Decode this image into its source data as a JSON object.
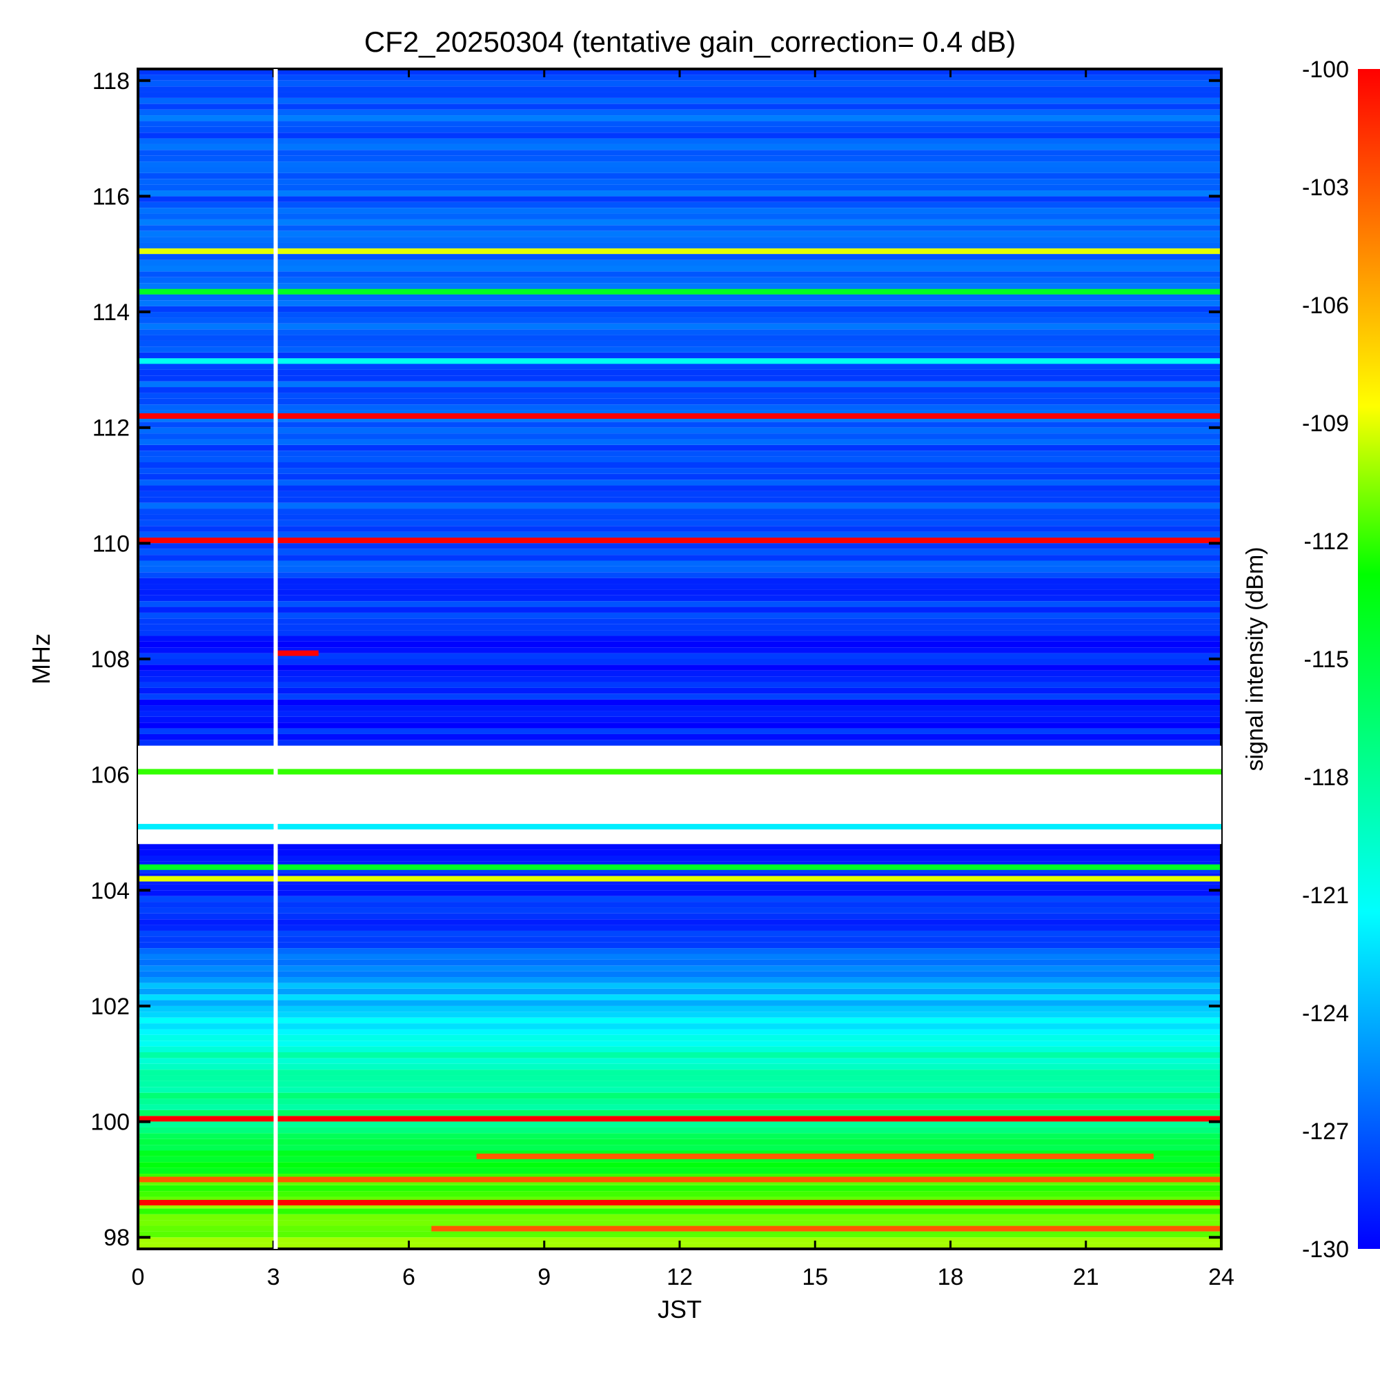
{
  "chart_data": {
    "type": "heatmap",
    "title": "CF2_20250304 (tentative gain_correction=  0.4 dB)",
    "xlabel": "JST",
    "ylabel": "MHz",
    "colorbar_label": "signal intensity (dBm)",
    "x_ticks": [
      "0",
      "3",
      "6",
      "9",
      "12",
      "15",
      "18",
      "21",
      "24"
    ],
    "y_ticks": [
      "98",
      "100",
      "102",
      "104",
      "106",
      "108",
      "110",
      "112",
      "114",
      "116",
      "118"
    ],
    "colorbar_ticks": [
      "-100",
      "-103",
      "-106",
      "-109",
      "-112",
      "-115",
      "-118",
      "-121",
      "-124",
      "-127",
      "-130"
    ],
    "xlim": [
      0,
      24
    ],
    "ylim": [
      97.8,
      118.2
    ],
    "clim": [
      -130,
      -100
    ],
    "colormap": [
      "#0000ff",
      "#0080ff",
      "#00ffff",
      "#00ff80",
      "#00ff00",
      "#ffff00",
      "#ff8000",
      "#ff0000"
    ],
    "gap_time_jst": 3.05,
    "blank_band_mhz": [
      [
        104.8,
        106.5
      ],
      [
        105.2,
        105.9
      ]
    ],
    "carriers": [
      {
        "freq_mhz": 115.05,
        "dbm": -109,
        "x_range": [
          0,
          24
        ]
      },
      {
        "freq_mhz": 114.35,
        "dbm": -114,
        "x_range": [
          0,
          24
        ]
      },
      {
        "freq_mhz": 113.15,
        "dbm": -121,
        "x_range": [
          0,
          24
        ]
      },
      {
        "freq_mhz": 112.2,
        "dbm": -100,
        "x_range": [
          0,
          24
        ]
      },
      {
        "freq_mhz": 110.05,
        "dbm": -100,
        "x_range": [
          0,
          24
        ]
      },
      {
        "freq_mhz": 108.1,
        "dbm": -100,
        "x_range": [
          3.0,
          4.0
        ]
      },
      {
        "freq_mhz": 106.05,
        "dbm": -112,
        "x_range": [
          0,
          24
        ]
      },
      {
        "freq_mhz": 105.1,
        "dbm": -122,
        "x_range": [
          0,
          24
        ]
      },
      {
        "freq_mhz": 104.4,
        "dbm": -114,
        "x_range": [
          0,
          24
        ]
      },
      {
        "freq_mhz": 104.2,
        "dbm": -109,
        "x_range": [
          0,
          24
        ]
      },
      {
        "freq_mhz": 100.05,
        "dbm": -100,
        "x_range": [
          0,
          24
        ]
      },
      {
        "freq_mhz": 99.4,
        "dbm": -103,
        "x_range": [
          7.5,
          22.5
        ]
      },
      {
        "freq_mhz": 99.0,
        "dbm": -103,
        "x_range": [
          0,
          24
        ]
      },
      {
        "freq_mhz": 98.6,
        "dbm": -100,
        "x_range": [
          0,
          24
        ]
      },
      {
        "freq_mhz": 98.15,
        "dbm": -103,
        "x_range": [
          6.5,
          24
        ]
      }
    ],
    "background_profile": [
      {
        "freq_mhz": 97.8,
        "dbm": -110
      },
      {
        "freq_mhz": 99.0,
        "dbm": -112
      },
      {
        "freq_mhz": 100.0,
        "dbm": -117
      },
      {
        "freq_mhz": 101.0,
        "dbm": -119
      },
      {
        "freq_mhz": 102.0,
        "dbm": -123
      },
      {
        "freq_mhz": 103.0,
        "dbm": -127
      },
      {
        "freq_mhz": 104.0,
        "dbm": -129
      },
      {
        "freq_mhz": 108.0,
        "dbm": -129
      },
      {
        "freq_mhz": 110.0,
        "dbm": -127
      },
      {
        "freq_mhz": 118.2,
        "dbm": -127
      }
    ]
  }
}
